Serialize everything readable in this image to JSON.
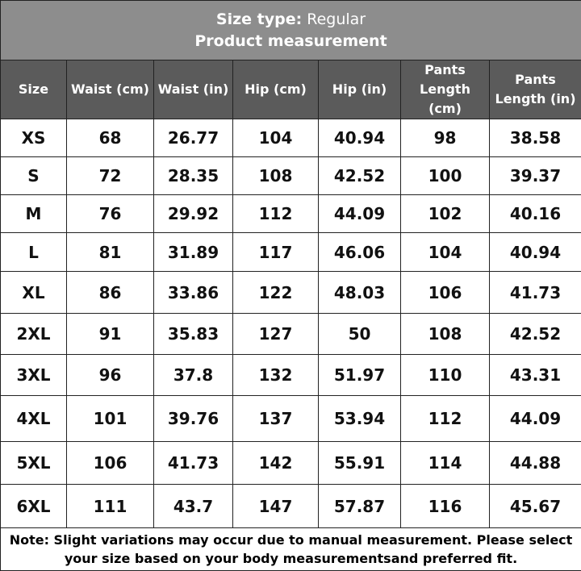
{
  "header": {
    "size_type_label": "Size type:",
    "size_type_value": "Regular",
    "title": "Product measurement"
  },
  "table": {
    "headers": [
      "Size",
      "Waist (cm)",
      "Waist (in)",
      "Hip (cm)",
      "Hip (in)",
      "Pants Length (cm)",
      "Pants Length (in)"
    ],
    "rows": [
      [
        "XS",
        68,
        26.77,
        104,
        40.94,
        98,
        38.58
      ],
      [
        "S",
        72,
        28.35,
        108,
        42.52,
        100,
        39.37
      ],
      [
        "M",
        76,
        29.92,
        112,
        44.09,
        102,
        40.16
      ],
      [
        "L",
        81,
        31.89,
        117,
        46.06,
        104,
        40.94
      ],
      [
        "XL",
        86,
        33.86,
        122,
        48.03,
        106,
        41.73
      ],
      [
        "2XL",
        91,
        35.83,
        127,
        50,
        108,
        42.52
      ],
      [
        "3XL",
        96,
        37.8,
        132,
        51.97,
        110,
        43.31
      ],
      [
        "4XL",
        101,
        39.76,
        137,
        53.94,
        112,
        44.09
      ],
      [
        "5XL",
        106,
        41.73,
        142,
        55.91,
        114,
        44.88
      ],
      [
        "6XL",
        111,
        43.7,
        147,
        57.87,
        116,
        45.67
      ]
    ]
  },
  "note": "Note: Slight variations may occur due to manual measurement. Please select your size based on your body measurementsand preferred fit."
}
